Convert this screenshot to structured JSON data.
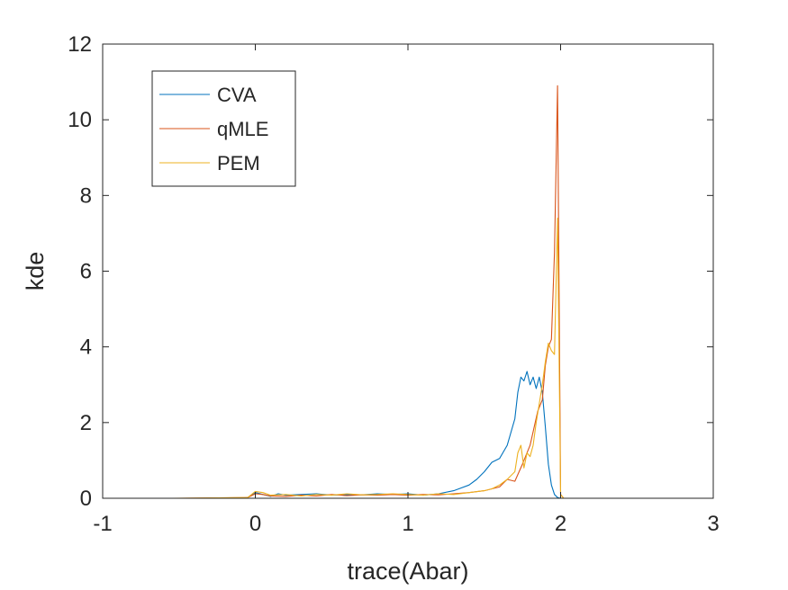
{
  "chart_data": {
    "type": "line",
    "title": "",
    "xlabel": "trace(Abar)",
    "ylabel": "kde",
    "xlim": [
      -1,
      3
    ],
    "ylim": [
      0,
      12
    ],
    "xticks": [
      -1,
      0,
      1,
      2,
      3
    ],
    "yticks": [
      0,
      2,
      4,
      6,
      8,
      10,
      12
    ],
    "xtick_labels": [
      "-1",
      "0",
      "1",
      "2",
      "3"
    ],
    "ytick_labels": [
      "0",
      "2",
      "4",
      "6",
      "8",
      "10",
      "12"
    ],
    "grid": false,
    "box": true,
    "legend": {
      "position": "top-left",
      "entries": [
        "CVA",
        "qMLE",
        "PEM"
      ]
    },
    "series": [
      {
        "name": "CVA",
        "color": "#0072BD",
        "x": [
          -0.6,
          -0.1,
          -0.05,
          0.0,
          0.05,
          0.1,
          0.15,
          0.2,
          0.3,
          0.4,
          0.5,
          0.6,
          0.7,
          0.8,
          0.9,
          1.0,
          1.1,
          1.2,
          1.3,
          1.4,
          1.45,
          1.5,
          1.55,
          1.6,
          1.65,
          1.7,
          1.72,
          1.74,
          1.76,
          1.78,
          1.8,
          1.82,
          1.84,
          1.86,
          1.88,
          1.9,
          1.92,
          1.94,
          1.96,
          1.98,
          2.0,
          2.5
        ],
        "y": [
          0.0,
          0.0,
          0.02,
          0.15,
          0.1,
          0.05,
          0.12,
          0.08,
          0.1,
          0.12,
          0.08,
          0.1,
          0.09,
          0.12,
          0.1,
          0.12,
          0.08,
          0.12,
          0.2,
          0.35,
          0.5,
          0.7,
          0.95,
          1.05,
          1.4,
          2.1,
          2.8,
          3.2,
          3.1,
          3.35,
          3.0,
          3.2,
          2.9,
          3.2,
          2.8,
          1.9,
          0.9,
          0.35,
          0.1,
          0.02,
          0.0,
          0.0
        ]
      },
      {
        "name": "qMLE",
        "color": "#D95319",
        "x": [
          -0.5,
          -0.05,
          0.0,
          0.05,
          0.1,
          0.2,
          0.3,
          0.4,
          0.5,
          0.6,
          0.7,
          0.8,
          0.9,
          1.0,
          1.1,
          1.2,
          1.3,
          1.4,
          1.5,
          1.6,
          1.65,
          1.7,
          1.75,
          1.8,
          1.85,
          1.88,
          1.9,
          1.92,
          1.94,
          1.96,
          1.98,
          2.0,
          2.02,
          2.5
        ],
        "y": [
          0.0,
          0.02,
          0.12,
          0.1,
          0.06,
          0.05,
          0.08,
          0.06,
          0.1,
          0.07,
          0.09,
          0.08,
          0.1,
          0.08,
          0.1,
          0.09,
          0.12,
          0.15,
          0.2,
          0.3,
          0.5,
          0.45,
          0.9,
          1.4,
          2.3,
          2.6,
          3.5,
          4.0,
          4.2,
          6.5,
          10.9,
          0.1,
          0.0,
          0.0
        ]
      },
      {
        "name": "PEM",
        "color": "#EDB120",
        "x": [
          -0.55,
          -0.05,
          0.0,
          0.05,
          0.1,
          0.2,
          0.3,
          0.4,
          0.5,
          0.6,
          0.7,
          0.8,
          0.9,
          1.0,
          1.1,
          1.2,
          1.3,
          1.4,
          1.5,
          1.55,
          1.6,
          1.65,
          1.7,
          1.72,
          1.74,
          1.76,
          1.78,
          1.8,
          1.82,
          1.84,
          1.86,
          1.88,
          1.9,
          1.92,
          1.94,
          1.96,
          1.98,
          2.0,
          2.02,
          2.5
        ],
        "y": [
          0.0,
          0.02,
          0.18,
          0.15,
          0.08,
          0.1,
          0.06,
          0.1,
          0.08,
          0.12,
          0.09,
          0.1,
          0.12,
          0.1,
          0.08,
          0.12,
          0.1,
          0.15,
          0.2,
          0.25,
          0.35,
          0.5,
          0.7,
          1.2,
          1.4,
          0.8,
          1.2,
          1.1,
          1.4,
          2.0,
          2.5,
          3.0,
          3.6,
          4.1,
          3.9,
          3.8,
          7.4,
          0.1,
          0.0,
          0.0
        ]
      }
    ]
  }
}
